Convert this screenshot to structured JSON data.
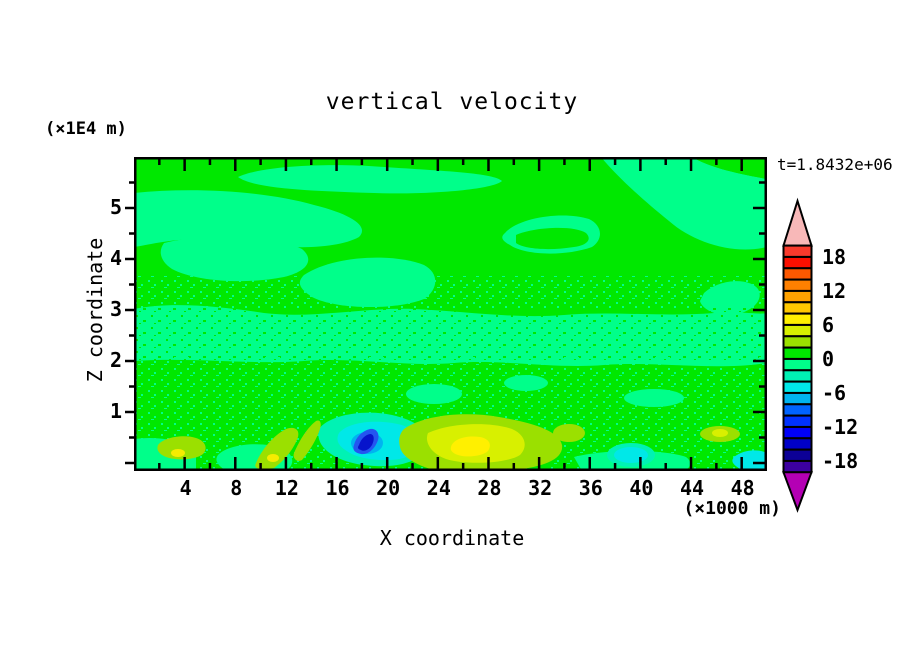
{
  "page": {
    "background": "#ffffff"
  },
  "chart_data": {
    "type": "heatmap",
    "subtype": "filled-contour",
    "title": "vertical velocity",
    "time_label": "t=1.8432e+06",
    "x_axis": {
      "label": "X coordinate",
      "unit": "(×1000 m)",
      "range": [
        0,
        50
      ],
      "major_ticks": [
        4,
        8,
        12,
        16,
        20,
        24,
        28,
        32,
        36,
        40,
        44,
        48
      ],
      "minor_tick_step": 2
    },
    "z_axis": {
      "label": "Z coordinate",
      "unit": "(×1E4 m)",
      "range": [
        0,
        6
      ],
      "labeled_ticks": [
        1,
        2,
        3,
        4,
        5
      ],
      "major_ticks": [
        0,
        1,
        2,
        3,
        4,
        5
      ],
      "minor_tick_step": 0.5
    },
    "colorbar": {
      "labels": [
        18,
        12,
        6,
        0,
        -6,
        -12,
        -18
      ],
      "boundaries": [
        20,
        18,
        16,
        14,
        12,
        10,
        8,
        6,
        4,
        2,
        0,
        -2,
        -4,
        -6,
        -8,
        -10,
        -12,
        -14,
        -16,
        -18,
        -20
      ],
      "colors": [
        "#f93a2c",
        "#fb0f00",
        "#fd5800",
        "#ff8000",
        "#ffa200",
        "#ffc800",
        "#fff000",
        "#d8f000",
        "#9be000",
        "#00e800",
        "#00ff8a",
        "#00f2b4",
        "#00e8e8",
        "#00b4f0",
        "#0064ff",
        "#0032ff",
        "#0000f8",
        "#0000c8",
        "#0c0096",
        "#3c00a0"
      ],
      "over_arrow_color": "#f8b8b8",
      "under_arrow_color": "#b400b4"
    },
    "field": {
      "background_band": "0 to 2",
      "background_color": "#00e800",
      "secondary_band": "-2 to 0",
      "secondary_color": "#00ff8a",
      "description": "Near-zero vertical velocity over most of the domain; smooth green/mint contour blobs aloft, fine speckle texture in the lower half, stronger extrema near the surface",
      "features": [
        {
          "name": "downdraft-minimum",
          "x": 18.3,
          "z": 0.4,
          "approx_value": -14
        },
        {
          "name": "cyan-downdraft-region",
          "x": 17.5,
          "z": 0.5,
          "approx_value": -6
        },
        {
          "name": "updraft-maximum",
          "x": 26.6,
          "z": 0.4,
          "approx_value": 7
        },
        {
          "name": "updraft-left",
          "x": 3.8,
          "z": 0.5,
          "approx_value": 5
        },
        {
          "name": "updraft-midleft",
          "x": 10.8,
          "z": 0.3,
          "approx_value": 5
        },
        {
          "name": "updraft-right",
          "x": 46.2,
          "z": 0.6,
          "approx_value": 4
        },
        {
          "name": "cyan-patch-right",
          "x": 39.2,
          "z": 0.3,
          "approx_value": -5
        },
        {
          "name": "cyan-patch-far-right",
          "x": 49.0,
          "z": 0.2,
          "approx_value": -5
        }
      ]
    }
  }
}
